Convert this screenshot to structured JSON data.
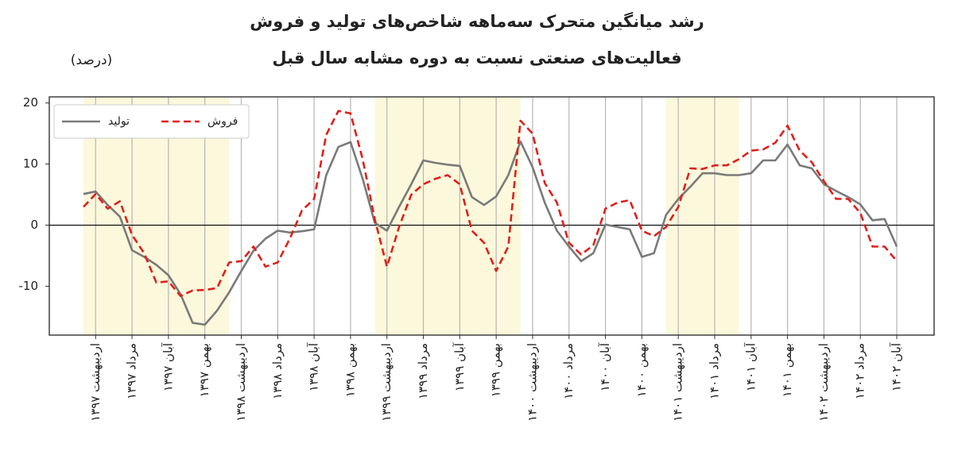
{
  "chart_data": {
    "type": "line",
    "title": "رشد میانگین متحرک سه‌ماهه شاخص‌های تولید و فروش",
    "subtitle": "فعالیت‌های صنعتی نسبت به دوره مشابه سال قبل",
    "ylabel": "(درصد)",
    "categories": [
      null,
      "اردیبهشت ۱۳۹۷",
      null,
      null,
      "مرداد ۱۳۹۷",
      null,
      null,
      "آبان ۱۳۹۷",
      null,
      null,
      "بهمن ۱۳۹۷",
      null,
      null,
      "اردیبهشت ۱۳۹۸",
      null,
      null,
      "مرداد ۱۳۹۸",
      null,
      null,
      "آبان ۱۳۹۸",
      null,
      null,
      "بهمن ۱۳۹۸",
      null,
      null,
      "اردیبهشت ۱۳۹۹",
      null,
      null,
      "مرداد ۱۳۹۹",
      null,
      null,
      "آبان ۱۳۹۹",
      null,
      null,
      "بهمن ۱۳۹۹",
      null,
      null,
      "اردیبهشت ۱۴۰۰",
      null,
      null,
      "مرداد ۱۴۰۰",
      null,
      null,
      "آبان ۱۴۰۰",
      null,
      null,
      "بهمن ۱۴۰۰",
      null,
      null,
      "اردیبهشت ۱۴۰۱",
      null,
      null,
      "مرداد ۱۴۰۱",
      null,
      null,
      "آبان ۱۴۰۱",
      null,
      null,
      "بهمن ۱۴۰۱",
      null,
      null,
      "اردیبهشت ۱۴۰۲",
      null,
      null,
      "مرداد ۱۴۰۲",
      null,
      null,
      "آبان ۱۴۰۲"
    ],
    "series": [
      {
        "name": "تولید",
        "color": "#7a7a7a",
        "dash": false,
        "values": [
          5.1,
          5.5,
          3.3,
          1.4,
          -4.1,
          -5.2,
          -6.5,
          -8.2,
          -11.3,
          -16,
          -16.3,
          -14,
          -11,
          -7.5,
          -4.2,
          -2.2,
          -0.9,
          -1.2,
          -1,
          -0.7,
          8.2,
          12.8,
          13.6,
          7.6,
          0.4,
          -0.9,
          3,
          6.7,
          10.6,
          10.2,
          9.9,
          9.7,
          4.6,
          3.3,
          4.7,
          8.2,
          13.7,
          9.5,
          3.7,
          -0.9,
          -3.5,
          -5.9,
          -4.6,
          0.1,
          -0.3,
          -0.7,
          -5.2,
          -4.6,
          1.7,
          4.3,
          6.3,
          8.5,
          8.5,
          8.2,
          8.2,
          8.5,
          10.6,
          10.6,
          13.2,
          9.8,
          9.3,
          6.7,
          5.6,
          4.6,
          3.4,
          0.8,
          1,
          -3.5
        ]
      },
      {
        "name": "فروش",
        "color": "#e0201b",
        "dash": true,
        "values": [
          3,
          5.1,
          2.7,
          3.9,
          -1.6,
          -4.6,
          -9.4,
          -9.2,
          -11.6,
          -10.7,
          -10.6,
          -10.3,
          -6.1,
          -5.9,
          -3.5,
          -6.8,
          -6.1,
          -2.2,
          2.4,
          4.3,
          14.8,
          18.7,
          18.3,
          10.8,
          1,
          -6.8,
          -0.3,
          5,
          6.7,
          7.6,
          8.2,
          6.7,
          -0.9,
          -2.9,
          -7.5,
          -3.5,
          17.1,
          15,
          6.9,
          3.7,
          -2.9,
          -4.8,
          -3.3,
          2.7,
          3.7,
          4.1,
          -0.9,
          -1.8,
          -0.3,
          3,
          9.3,
          9.2,
          9.8,
          9.8,
          10.8,
          12.2,
          12.4,
          13.5,
          16.3,
          12.2,
          10.3,
          7.2,
          4.3,
          4.3,
          2,
          -3.5,
          -3.5,
          -5.9
        ]
      }
    ],
    "ylim": [
      -18,
      21
    ],
    "yticks": [
      -10,
      0,
      10,
      20
    ],
    "legend": "upper left",
    "grid": true
  }
}
